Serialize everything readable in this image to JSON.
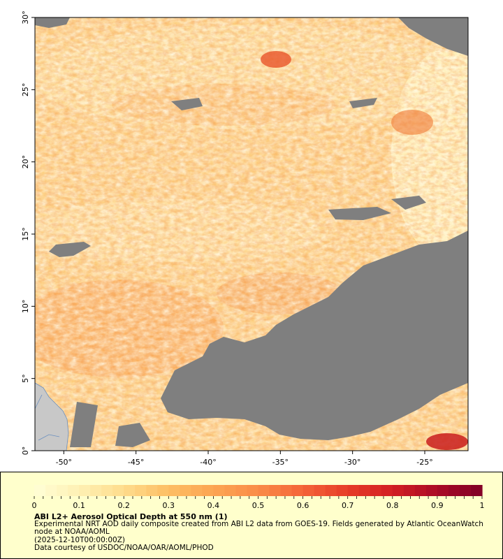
{
  "map": {
    "lat_ticks": [
      "0°",
      "5°",
      "10°",
      "15°",
      "20°",
      "25°",
      "30°"
    ],
    "lat_values": [
      0,
      5,
      10,
      15,
      20,
      25,
      30
    ],
    "lon_ticks": [
      "-50°",
      "-45°",
      "-40°",
      "-35°",
      "-30°",
      "-25°"
    ],
    "lon_values": [
      -50,
      -45,
      -40,
      -35,
      -30,
      -25
    ],
    "lon_range": [
      -52,
      -22
    ],
    "lat_range": [
      0,
      30
    ],
    "colors": {
      "no_data": "#7f7f7f",
      "land": "#c8c8c8",
      "low": "#fff0b4",
      "mid": "#fdb25a",
      "high": "#e8401e",
      "max": "#800026"
    }
  },
  "legend": {
    "tick_labels": [
      "0",
      "0.1",
      "0.2",
      "0.3",
      "0.4",
      "0.5",
      "0.6",
      "0.7",
      "0.8",
      "0.9",
      "1"
    ],
    "tick_values": [
      0,
      0.1,
      0.2,
      0.3,
      0.4,
      0.5,
      0.6,
      0.7,
      0.8,
      0.9,
      1
    ],
    "range": [
      0,
      1
    ],
    "title": "ABI L2+ Aerosol Optical Depth at 550 nm (1)",
    "description": "Experimental NRT AOD daily composite created from ABI L2 data from GOES-19. Fields generated by Atlantic OceanWatch node at NOAA/AOML",
    "date": "(2025-12-10T00:00:00Z)",
    "credit": "Data courtesy of USDOC/NOAA/OAR/AOML/PHOD"
  }
}
